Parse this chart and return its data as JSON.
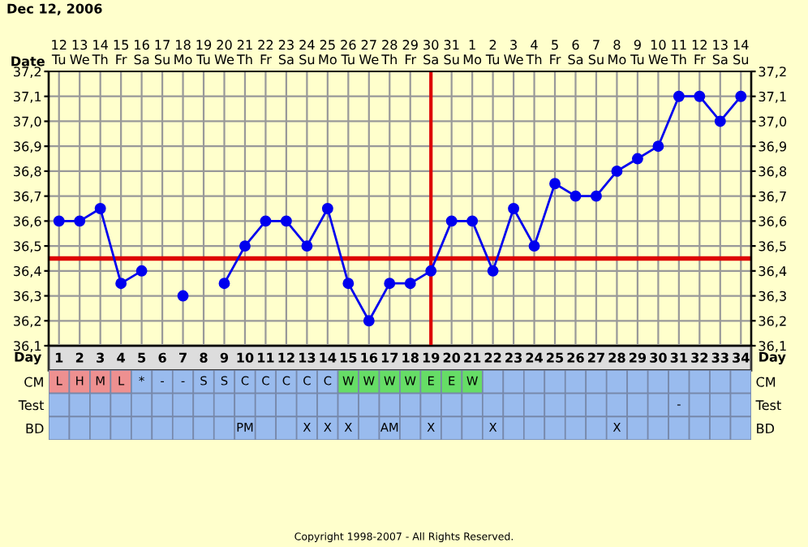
{
  "chart_data": [
    {
      "type": "line",
      "title": "Dec 12, 2006",
      "xlabel": "Day",
      "x2label": "Date",
      "x": [
        1,
        2,
        3,
        4,
        5,
        6,
        7,
        8,
        9,
        10,
        11,
        12,
        13,
        14,
        15,
        16,
        17,
        18,
        19,
        20,
        21,
        22,
        23,
        24,
        25,
        26,
        27,
        28,
        29,
        30,
        31,
        32,
        33,
        34
      ],
      "series": [
        {
          "color": "#0000ee",
          "values": [
            36.6,
            36.6,
            36.65,
            36.35,
            36.4,
            null,
            36.3,
            null,
            36.35,
            36.5,
            36.6,
            36.6,
            36.5,
            36.65,
            36.35,
            36.2,
            36.35,
            36.35,
            36.4,
            36.6,
            36.6,
            36.4,
            36.65,
            36.5,
            36.75,
            36.7,
            36.7,
            36.8,
            36.85,
            36.9,
            37.1,
            37.1,
            37.0,
            37.1
          ]
        }
      ],
      "xlim": [
        0.5,
        34.5
      ],
      "xticks": [
        1,
        2,
        3,
        4,
        5,
        6,
        7,
        8,
        9,
        10,
        11,
        12,
        13,
        14,
        15,
        16,
        17,
        18,
        19,
        20,
        21,
        22,
        23,
        24,
        25,
        26,
        27,
        28,
        29,
        30,
        31,
        32,
        33,
        34
      ],
      "x2lim": [
        "2006-12-11T12:00",
        "2007-01-14T12:00"
      ],
      "x2ticks": [
        {
          "value": "2006-12-12",
          "label": "12\nTu"
        },
        {
          "value": "2006-12-13",
          "label": "13\nWe"
        },
        {
          "value": "2006-12-14",
          "label": "14\nTh"
        },
        {
          "value": "2006-12-15",
          "label": "15\nFr"
        },
        {
          "value": "2006-12-16",
          "label": "16\nSa"
        },
        {
          "value": "2006-12-17",
          "label": "17\nSu"
        },
        {
          "value": "2006-12-18",
          "label": "18\nMo"
        },
        {
          "value": "2006-12-19",
          "label": "19\nTu"
        },
        {
          "value": "2006-12-20",
          "label": "20\nWe"
        },
        {
          "value": "2006-12-21",
          "label": "21\nTh"
        },
        {
          "value": "2006-12-22",
          "label": "22\nFr"
        },
        {
          "value": "2006-12-23",
          "label": "23\nSa"
        },
        {
          "value": "2006-12-24",
          "label": "24\nSu"
        },
        {
          "value": "2006-12-25",
          "label": "25\nMo"
        },
        {
          "value": "2006-12-26",
          "label": "26\nTu"
        },
        {
          "value": "2006-12-27",
          "label": "27\nWe"
        },
        {
          "value": "2006-12-28",
          "label": "28\nTh"
        },
        {
          "value": "2006-12-29",
          "label": "29\nFr"
        },
        {
          "value": "2006-12-30",
          "label": "30\nSa"
        },
        {
          "value": "2006-12-31",
          "label": "31\nSu"
        },
        {
          "value": "2007-01-01",
          "label": "1\nMo"
        },
        {
          "value": "2007-01-02",
          "label": "2\nTu"
        },
        {
          "value": "2007-01-03",
          "label": "3\nWe"
        },
        {
          "value": "2007-01-04",
          "label": "4\nTh"
        },
        {
          "value": "2007-01-05",
          "label": "5\nFr"
        },
        {
          "value": "2007-01-06",
          "label": "6\nSa"
        },
        {
          "value": "2007-01-07",
          "label": "7\nSu"
        },
        {
          "value": "2007-01-08",
          "label": "8\nMo"
        },
        {
          "value": "2007-01-09",
          "label": "9\nTu"
        },
        {
          "value": "2007-01-10",
          "label": "10\nWe"
        },
        {
          "value": "2007-01-11",
          "label": "11\nTh"
        },
        {
          "value": "2007-01-12",
          "label": "12\nFr"
        },
        {
          "value": "2007-01-13",
          "label": "13\nSa"
        },
        {
          "value": "2007-01-14",
          "label": "14\nSu"
        }
      ],
      "ylim": [
        36.1,
        37.2
      ],
      "yticks": [
        {
          "value": 36.1,
          "label": "36,1"
        },
        {
          "value": 36.2,
          "label": "36,2"
        },
        {
          "value": 36.3,
          "label": "36,3"
        },
        {
          "value": 36.4,
          "label": "36,4"
        },
        {
          "value": 36.5,
          "label": "36,5"
        },
        {
          "value": 36.6,
          "label": "36,6"
        },
        {
          "value": 36.7,
          "label": "36,7"
        },
        {
          "value": 36.8,
          "label": "36,8"
        },
        {
          "value": 36.9,
          "label": "36,9"
        },
        {
          "value": 37.0,
          "label": "37,0"
        },
        {
          "value": 37.1,
          "label": "37,1"
        },
        {
          "value": 37.2,
          "label": "37,2"
        }
      ],
      "y2lim": [
        36.1,
        37.2
      ],
      "y2ticks": [
        {
          "value": 36.1,
          "label": "36,1"
        },
        {
          "value": 36.2,
          "label": "36,2"
        },
        {
          "value": 36.3,
          "label": "36,3"
        },
        {
          "value": 36.4,
          "label": "36,4"
        },
        {
          "value": 36.5,
          "label": "36,5"
        },
        {
          "value": 36.6,
          "label": "36,6"
        },
        {
          "value": 36.7,
          "label": "36,7"
        },
        {
          "value": 36.8,
          "label": "36,8"
        },
        {
          "value": 36.9,
          "label": "36,9"
        },
        {
          "value": 37.0,
          "label": "37,0"
        },
        {
          "value": 37.1,
          "label": "37,1"
        },
        {
          "value": 37.2,
          "label": "37,2"
        }
      ],
      "ref_lines": [
        {
          "axis": "y",
          "value": 36.45,
          "color": "#dd0000"
        },
        {
          "axis": "x",
          "value": 19,
          "color": "#dd0000"
        }
      ],
      "grid": true,
      "marker": "circle",
      "line_style": "solid",
      "legend": false
    },
    {
      "type": "other",
      "y_categories": [
        "CM",
        "Test",
        "BD"
      ],
      "cell_labels": [
        [
          "L",
          "H",
          "M",
          "L",
          "*",
          "-",
          "-",
          "S",
          "S",
          "C",
          "C",
          "C",
          "C",
          "C",
          "W",
          "W",
          "W",
          "W",
          "E",
          "E",
          "W",
          null,
          null,
          null,
          null,
          null,
          null,
          null,
          null,
          null,
          null,
          null,
          null,
          null
        ],
        [
          null,
          null,
          null,
          null,
          null,
          null,
          null,
          null,
          null,
          null,
          null,
          null,
          null,
          null,
          null,
          null,
          null,
          null,
          null,
          null,
          null,
          null,
          null,
          null,
          null,
          null,
          null,
          null,
          null,
          null,
          "-",
          null,
          null,
          null
        ],
        [
          null,
          null,
          null,
          null,
          null,
          null,
          null,
          null,
          null,
          "PM",
          null,
          null,
          "X",
          "X",
          "X",
          null,
          "AM",
          null,
          "X",
          null,
          null,
          "X",
          null,
          null,
          null,
          null,
          null,
          "X",
          null,
          null,
          null,
          null,
          null,
          null
        ]
      ],
      "colors": [
        [
          "#ee9090",
          "#ee9090",
          "#ee9090",
          "#ee9090",
          "#99bbee",
          "#99bbee",
          "#99bbee",
          "#99bbee",
          "#99bbee",
          "#99bbee",
          "#99bbee",
          "#99bbee",
          "#99bbee",
          "#99bbee",
          "#66dd66",
          "#66dd66",
          "#66dd66",
          "#66dd66",
          "#66dd66",
          "#66dd66",
          "#66dd66",
          "#99bbee",
          "#99bbee",
          "#99bbee",
          "#99bbee",
          "#99bbee",
          "#99bbee",
          "#99bbee",
          "#99bbee",
          "#99bbee",
          "#99bbee",
          "#99bbee",
          "#99bbee",
          "#99bbee"
        ],
        [
          "#99bbee",
          "#99bbee",
          "#99bbee",
          "#99bbee",
          "#99bbee",
          "#99bbee",
          "#99bbee",
          "#99bbee",
          "#99bbee",
          "#99bbee",
          "#99bbee",
          "#99bbee",
          "#99bbee",
          "#99bbee",
          "#99bbee",
          "#99bbee",
          "#99bbee",
          "#99bbee",
          "#99bbee",
          "#99bbee",
          "#99bbee",
          "#99bbee",
          "#99bbee",
          "#99bbee",
          "#99bbee",
          "#99bbee",
          "#99bbee",
          "#99bbee",
          "#99bbee",
          "#99bbee",
          "#99bbee",
          "#99bbee",
          "#99bbee",
          "#99bbee"
        ],
        [
          "#99bbee",
          "#99bbee",
          "#99bbee",
          "#99bbee",
          "#99bbee",
          "#99bbee",
          "#99bbee",
          "#99bbee",
          "#99bbee",
          "#99bbee",
          "#99bbee",
          "#99bbee",
          "#99bbee",
          "#99bbee",
          "#99bbee",
          "#99bbee",
          "#99bbee",
          "#99bbee",
          "#99bbee",
          "#99bbee",
          "#99bbee",
          "#99bbee",
          "#99bbee",
          "#99bbee",
          "#99bbee",
          "#99bbee",
          "#99bbee",
          "#99bbee",
          "#99bbee",
          "#99bbee",
          "#99bbee",
          "#99bbee",
          "#99bbee",
          "#99bbee"
        ]
      ],
      "annotations": [
        "Copyright 1998-2007 - All Rights Reserved."
      ]
    }
  ]
}
